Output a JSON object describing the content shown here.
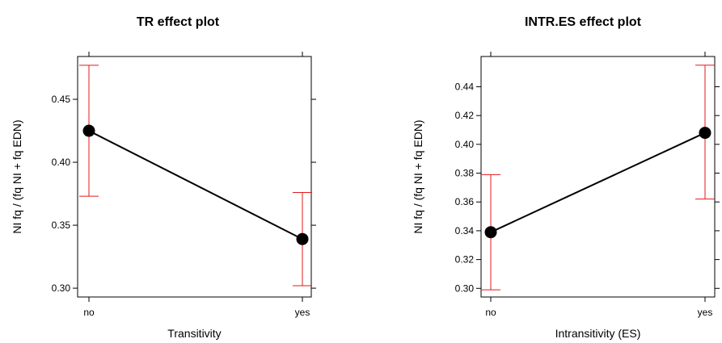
{
  "chart_data": [
    {
      "type": "line",
      "title": "TR effect plot",
      "xlabel": "Transitivity",
      "ylabel": "NI fq / (fq NI + fq EDN)",
      "categories": [
        "no",
        "yes"
      ],
      "values": [
        0.425,
        0.339
      ],
      "lower": [
        0.373,
        0.302
      ],
      "upper": [
        0.477,
        0.376
      ],
      "ylim": [
        0.293,
        0.484
      ],
      "yticks": [
        0.3,
        0.35,
        0.4,
        0.45
      ],
      "ytick_labels": [
        "0.30",
        "0.35",
        "0.40",
        "0.45"
      ],
      "grid": false,
      "colors": {
        "line": "#000000",
        "error_bar": "#e31a1c"
      }
    },
    {
      "type": "line",
      "title": "INTR.ES effect plot",
      "xlabel": "Intransitivity (ES)",
      "ylabel": "NI fq / (fq NI + fq EDN)",
      "categories": [
        "no",
        "yes"
      ],
      "values": [
        0.339,
        0.408
      ],
      "lower": [
        0.299,
        0.362
      ],
      "upper": [
        0.379,
        0.455
      ],
      "ylim": [
        0.294,
        0.461
      ],
      "yticks": [
        0.3,
        0.32,
        0.34,
        0.36,
        0.38,
        0.4,
        0.42,
        0.44
      ],
      "ytick_labels": [
        "0.30",
        "0.32",
        "0.34",
        "0.36",
        "0.38",
        "0.40",
        "0.42",
        "0.44"
      ],
      "grid": false,
      "colors": {
        "line": "#000000",
        "error_bar": "#e31a1c"
      }
    }
  ]
}
